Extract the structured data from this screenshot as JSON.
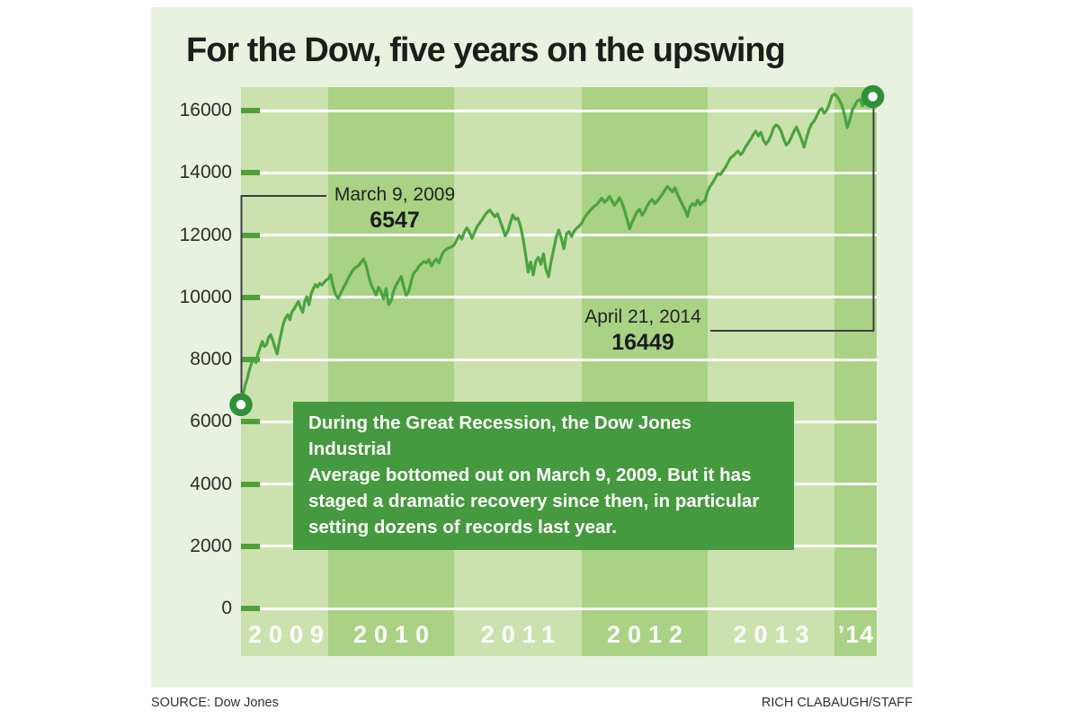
{
  "title": "For the Dow, five years on the upswing",
  "note": {
    "text": "During the Great Recession, the Dow Jones Industrial\nAverage bottomed out on March 9, 2009. But it has\nstaged a dramatic recovery since then, in particular\nsetting dozens of records last year."
  },
  "footer": {
    "source": "SOURCE: Dow Jones",
    "credit": "RICH CLABAUGH/STAFF"
  },
  "colors": {
    "panel_bg": "#e9f1e0",
    "band_light": "#cce2ae",
    "band_dark": "#a9d284",
    "grid": "#ffffff",
    "tick": "#4ea03b",
    "line": "#4aa33f",
    "marker_ring": "#2e9137",
    "marker_fill": "#ffffff",
    "info_box_bg": "#45993e",
    "callout": "#3f3f3f"
  },
  "chart_data": {
    "type": "line",
    "title": "For the Dow, five years on the upswing",
    "xlabel": "",
    "ylabel": "",
    "ylim": [
      0,
      16750
    ],
    "xlim": [
      2009.18,
      2014.33
    ],
    "grid": "horizontal-white",
    "legend": "none",
    "y_ticks": [
      0,
      2000,
      4000,
      6000,
      8000,
      10000,
      12000,
      14000,
      16000
    ],
    "x_bands": [
      {
        "label": "2009",
        "start": 2009.18,
        "end": 2010,
        "shade": "light"
      },
      {
        "label": "2010",
        "start": 2010,
        "end": 2011,
        "shade": "dark"
      },
      {
        "label": "2011",
        "start": 2011,
        "end": 2012,
        "shade": "light"
      },
      {
        "label": "2012",
        "start": 2012,
        "end": 2013,
        "shade": "dark"
      },
      {
        "label": "2013",
        "start": 2013,
        "end": 2014,
        "shade": "light"
      },
      {
        "label": "’14",
        "start": 2014,
        "end": 2014.33,
        "shade": "dark"
      }
    ],
    "annotations": {
      "start": {
        "date": "March 9, 2009",
        "value": "6547",
        "point": [
          2009.18,
          6547
        ]
      },
      "end": {
        "date": "April 21, 2014",
        "value": "16449",
        "point": [
          2014.3,
          16449
        ]
      }
    },
    "series": [
      {
        "name": "Dow Jones Industrial Average",
        "points": [
          [
            2009.18,
            6547
          ],
          [
            2009.2,
            6870
          ],
          [
            2009.22,
            7180
          ],
          [
            2009.24,
            7400
          ],
          [
            2009.26,
            7680
          ],
          [
            2009.28,
            7880
          ],
          [
            2009.3,
            8020
          ],
          [
            2009.32,
            7900
          ],
          [
            2009.34,
            8180
          ],
          [
            2009.36,
            8380
          ],
          [
            2009.38,
            8580
          ],
          [
            2009.4,
            8420
          ],
          [
            2009.42,
            8480
          ],
          [
            2009.44,
            8720
          ],
          [
            2009.46,
            8800
          ],
          [
            2009.48,
            8600
          ],
          [
            2009.5,
            8380
          ],
          [
            2009.52,
            8180
          ],
          [
            2009.54,
            8560
          ],
          [
            2009.56,
            8880
          ],
          [
            2009.58,
            9170
          ],
          [
            2009.6,
            9340
          ],
          [
            2009.62,
            9440
          ],
          [
            2009.64,
            9280
          ],
          [
            2009.66,
            9540
          ],
          [
            2009.68,
            9620
          ],
          [
            2009.7,
            9750
          ],
          [
            2009.72,
            9860
          ],
          [
            2009.74,
            9680
          ],
          [
            2009.76,
            9510
          ],
          [
            2009.78,
            9870
          ],
          [
            2009.8,
            10020
          ],
          [
            2009.82,
            9760
          ],
          [
            2009.84,
            10120
          ],
          [
            2009.86,
            10270
          ],
          [
            2009.88,
            10410
          ],
          [
            2009.9,
            10330
          ],
          [
            2009.92,
            10450
          ],
          [
            2009.94,
            10390
          ],
          [
            2009.96,
            10470
          ],
          [
            2009.98,
            10550
          ],
          [
            2010.0,
            10590
          ],
          [
            2010.02,
            10720
          ],
          [
            2010.04,
            10340
          ],
          [
            2010.06,
            10070
          ],
          [
            2010.08,
            9960
          ],
          [
            2010.1,
            10130
          ],
          [
            2010.12,
            10310
          ],
          [
            2010.14,
            10440
          ],
          [
            2010.16,
            10610
          ],
          [
            2010.18,
            10760
          ],
          [
            2010.2,
            10890
          ],
          [
            2010.22,
            10960
          ],
          [
            2010.24,
            11010
          ],
          [
            2010.26,
            11120
          ],
          [
            2010.28,
            11230
          ],
          [
            2010.3,
            11050
          ],
          [
            2010.32,
            10700
          ],
          [
            2010.34,
            10420
          ],
          [
            2010.36,
            10250
          ],
          [
            2010.38,
            10070
          ],
          [
            2010.4,
            10320
          ],
          [
            2010.42,
            10180
          ],
          [
            2010.44,
            9940
          ],
          [
            2010.46,
            10280
          ],
          [
            2010.48,
            9770
          ],
          [
            2010.5,
            9890
          ],
          [
            2010.52,
            10200
          ],
          [
            2010.54,
            10400
          ],
          [
            2010.56,
            10530
          ],
          [
            2010.58,
            10670
          ],
          [
            2010.6,
            10340
          ],
          [
            2010.62,
            10060
          ],
          [
            2010.64,
            10190
          ],
          [
            2010.66,
            10520
          ],
          [
            2010.68,
            10790
          ],
          [
            2010.7,
            10860
          ],
          [
            2010.72,
            10990
          ],
          [
            2010.74,
            11080
          ],
          [
            2010.76,
            11150
          ],
          [
            2010.78,
            11110
          ],
          [
            2010.8,
            11210
          ],
          [
            2010.82,
            11000
          ],
          [
            2010.84,
            11140
          ],
          [
            2010.86,
            11230
          ],
          [
            2010.88,
            11100
          ],
          [
            2010.9,
            11340
          ],
          [
            2010.92,
            11480
          ],
          [
            2010.94,
            11550
          ],
          [
            2010.96,
            11590
          ],
          [
            2010.98,
            11620
          ],
          [
            2011.0,
            11680
          ],
          [
            2011.02,
            11830
          ],
          [
            2011.04,
            11990
          ],
          [
            2011.06,
            11870
          ],
          [
            2011.08,
            12090
          ],
          [
            2011.1,
            12230
          ],
          [
            2011.12,
            12100
          ],
          [
            2011.14,
            11890
          ],
          [
            2011.16,
            12080
          ],
          [
            2011.18,
            12270
          ],
          [
            2011.2,
            12380
          ],
          [
            2011.22,
            12500
          ],
          [
            2011.24,
            12630
          ],
          [
            2011.26,
            12740
          ],
          [
            2011.28,
            12800
          ],
          [
            2011.3,
            12690
          ],
          [
            2011.32,
            12590
          ],
          [
            2011.34,
            12680
          ],
          [
            2011.36,
            12460
          ],
          [
            2011.38,
            12230
          ],
          [
            2011.4,
            11970
          ],
          [
            2011.42,
            12110
          ],
          [
            2011.44,
            12390
          ],
          [
            2011.46,
            12650
          ],
          [
            2011.48,
            12500
          ],
          [
            2011.5,
            12540
          ],
          [
            2011.52,
            12290
          ],
          [
            2011.54,
            11890
          ],
          [
            2011.56,
            11380
          ],
          [
            2011.58,
            10810
          ],
          [
            2011.6,
            11130
          ],
          [
            2011.62,
            10720
          ],
          [
            2011.64,
            11150
          ],
          [
            2011.66,
            11280
          ],
          [
            2011.68,
            11060
          ],
          [
            2011.7,
            11400
          ],
          [
            2011.72,
            10900
          ],
          [
            2011.74,
            10660
          ],
          [
            2011.76,
            11150
          ],
          [
            2011.78,
            11540
          ],
          [
            2011.8,
            11930
          ],
          [
            2011.82,
            12160
          ],
          [
            2011.84,
            11890
          ],
          [
            2011.86,
            11560
          ],
          [
            2011.88,
            12040
          ],
          [
            2011.9,
            12110
          ],
          [
            2011.92,
            11950
          ],
          [
            2011.94,
            12120
          ],
          [
            2011.96,
            12220
          ],
          [
            2011.98,
            12290
          ],
          [
            2012.0,
            12380
          ],
          [
            2012.02,
            12550
          ],
          [
            2012.04,
            12660
          ],
          [
            2012.06,
            12760
          ],
          [
            2012.08,
            12850
          ],
          [
            2012.1,
            12930
          ],
          [
            2012.12,
            12980
          ],
          [
            2012.14,
            13090
          ],
          [
            2012.16,
            13180
          ],
          [
            2012.18,
            13050
          ],
          [
            2012.2,
            13130
          ],
          [
            2012.22,
            13240
          ],
          [
            2012.24,
            13100
          ],
          [
            2012.26,
            12960
          ],
          [
            2012.28,
            13060
          ],
          [
            2012.3,
            13200
          ],
          [
            2012.32,
            13030
          ],
          [
            2012.34,
            12790
          ],
          [
            2012.36,
            12500
          ],
          [
            2012.38,
            12200
          ],
          [
            2012.4,
            12420
          ],
          [
            2012.42,
            12580
          ],
          [
            2012.44,
            12750
          ],
          [
            2012.46,
            12820
          ],
          [
            2012.48,
            12640
          ],
          [
            2012.5,
            12760
          ],
          [
            2012.52,
            12940
          ],
          [
            2012.54,
            13060
          ],
          [
            2012.56,
            13140
          ],
          [
            2012.58,
            13010
          ],
          [
            2012.6,
            13090
          ],
          [
            2012.62,
            13200
          ],
          [
            2012.64,
            13310
          ],
          [
            2012.66,
            13440
          ],
          [
            2012.68,
            13560
          ],
          [
            2012.7,
            13480
          ],
          [
            2012.72,
            13390
          ],
          [
            2012.74,
            13520
          ],
          [
            2012.76,
            13310
          ],
          [
            2012.78,
            13140
          ],
          [
            2012.8,
            12970
          ],
          [
            2012.82,
            12820
          ],
          [
            2012.84,
            12600
          ],
          [
            2012.86,
            12900
          ],
          [
            2012.88,
            13010
          ],
          [
            2012.9,
            12950
          ],
          [
            2012.92,
            13120
          ],
          [
            2012.94,
            12980
          ],
          [
            2012.96,
            13060
          ],
          [
            2012.98,
            13110
          ],
          [
            2013.0,
            13410
          ],
          [
            2013.02,
            13570
          ],
          [
            2013.04,
            13680
          ],
          [
            2013.06,
            13830
          ],
          [
            2013.08,
            13980
          ],
          [
            2013.1,
            13940
          ],
          [
            2013.12,
            14050
          ],
          [
            2013.14,
            14170
          ],
          [
            2013.16,
            14330
          ],
          [
            2013.18,
            14480
          ],
          [
            2013.2,
            14540
          ],
          [
            2013.22,
            14620
          ],
          [
            2013.24,
            14700
          ],
          [
            2013.26,
            14580
          ],
          [
            2013.28,
            14680
          ],
          [
            2013.3,
            14840
          ],
          [
            2013.32,
            14960
          ],
          [
            2013.34,
            15080
          ],
          [
            2013.36,
            15230
          ],
          [
            2013.38,
            15340
          ],
          [
            2013.4,
            15180
          ],
          [
            2013.42,
            15300
          ],
          [
            2013.44,
            15050
          ],
          [
            2013.46,
            14920
          ],
          [
            2013.48,
            15020
          ],
          [
            2013.5,
            15210
          ],
          [
            2013.52,
            15440
          ],
          [
            2013.54,
            15540
          ],
          [
            2013.56,
            15480
          ],
          [
            2013.58,
            15330
          ],
          [
            2013.6,
            15080
          ],
          [
            2013.62,
            14890
          ],
          [
            2013.64,
            14970
          ],
          [
            2013.66,
            15140
          ],
          [
            2013.68,
            15330
          ],
          [
            2013.7,
            15470
          ],
          [
            2013.72,
            15280
          ],
          [
            2013.74,
            15080
          ],
          [
            2013.76,
            14820
          ],
          [
            2013.78,
            15120
          ],
          [
            2013.8,
            15390
          ],
          [
            2013.82,
            15570
          ],
          [
            2013.84,
            15660
          ],
          [
            2013.86,
            15820
          ],
          [
            2013.88,
            15990
          ],
          [
            2013.9,
            16070
          ],
          [
            2013.92,
            15910
          ],
          [
            2013.94,
            16010
          ],
          [
            2013.96,
            16210
          ],
          [
            2013.98,
            16470
          ],
          [
            2014.0,
            16530
          ],
          [
            2014.02,
            16460
          ],
          [
            2014.04,
            16330
          ],
          [
            2014.06,
            16150
          ],
          [
            2014.08,
            15850
          ],
          [
            2014.1,
            15450
          ],
          [
            2014.12,
            15700
          ],
          [
            2014.14,
            16010
          ],
          [
            2014.16,
            16170
          ],
          [
            2014.18,
            16310
          ],
          [
            2014.2,
            16360
          ],
          [
            2014.22,
            16160
          ],
          [
            2014.24,
            16300
          ],
          [
            2014.26,
            16420
          ],
          [
            2014.28,
            16270
          ],
          [
            2014.3,
            16449
          ]
        ]
      }
    ]
  }
}
